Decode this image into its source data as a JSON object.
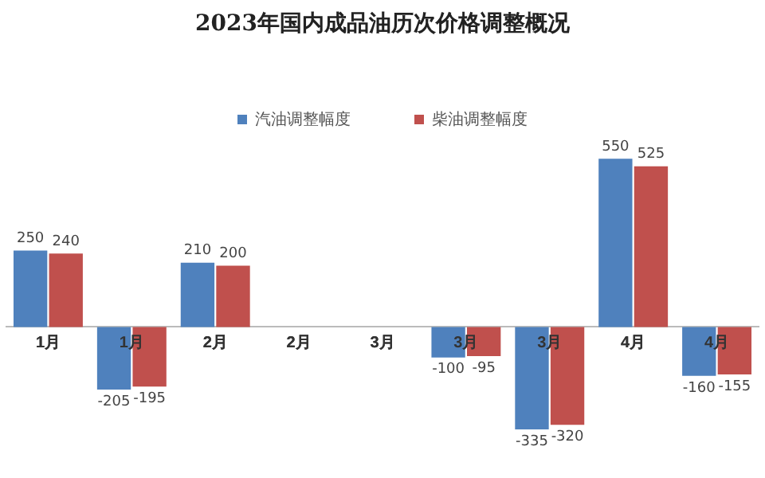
{
  "chart_data": {
    "type": "bar",
    "title": "2023年国内成品油历次价格调整概况",
    "categories": [
      "1月",
      "1月",
      "2月",
      "2月",
      "3月",
      "3月",
      "3月",
      "4月",
      "4月"
    ],
    "series": [
      {
        "name": "汽油调整幅度",
        "color": "#4f81bd",
        "values": [
          250,
          -205,
          210,
          null,
          null,
          -100,
          -335,
          550,
          -160
        ]
      },
      {
        "name": "柴油调整幅度",
        "color": "#c0504d",
        "values": [
          240,
          -195,
          200,
          null,
          null,
          -95,
          -320,
          525,
          -155
        ]
      }
    ],
    "data_labels": true,
    "legend": "top",
    "grid": false
  }
}
